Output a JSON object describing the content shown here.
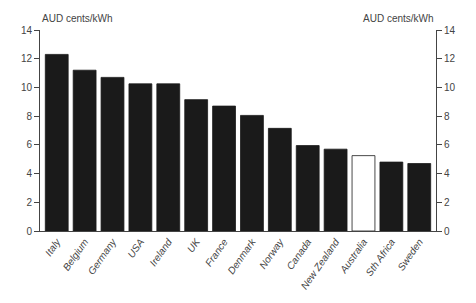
{
  "chart_data": {
    "type": "bar",
    "categories": [
      "Italy",
      "Belgium",
      "Germany",
      "USA",
      "Ireland",
      "UK",
      "France",
      "Denmark",
      "Norway",
      "Canada",
      "New Zealand",
      "Australia",
      "Sth Africa",
      "Sweden"
    ],
    "values": [
      12.3,
      11.2,
      10.7,
      10.25,
      10.25,
      9.15,
      8.7,
      8.05,
      7.15,
      5.95,
      5.7,
      5.25,
      4.8,
      4.7
    ],
    "colors": [
      "#1a1a1a",
      "#1a1a1a",
      "#1a1a1a",
      "#1a1a1a",
      "#1a1a1a",
      "#1a1a1a",
      "#1a1a1a",
      "#1a1a1a",
      "#1a1a1a",
      "#1a1a1a",
      "#1a1a1a",
      "#ffffff",
      "#1a1a1a",
      "#1a1a1a"
    ],
    "ylabel": "AUD cents/kWh",
    "y2label": "AUD cents/kWh",
    "ylim": [
      0,
      14
    ],
    "yticks": [
      0,
      2,
      4,
      6,
      8,
      10,
      12,
      14
    ],
    "y2lim": [
      0,
      14
    ],
    "y2ticks": [
      0,
      2,
      4,
      6,
      8,
      10,
      12,
      14
    ],
    "grid": false
  }
}
